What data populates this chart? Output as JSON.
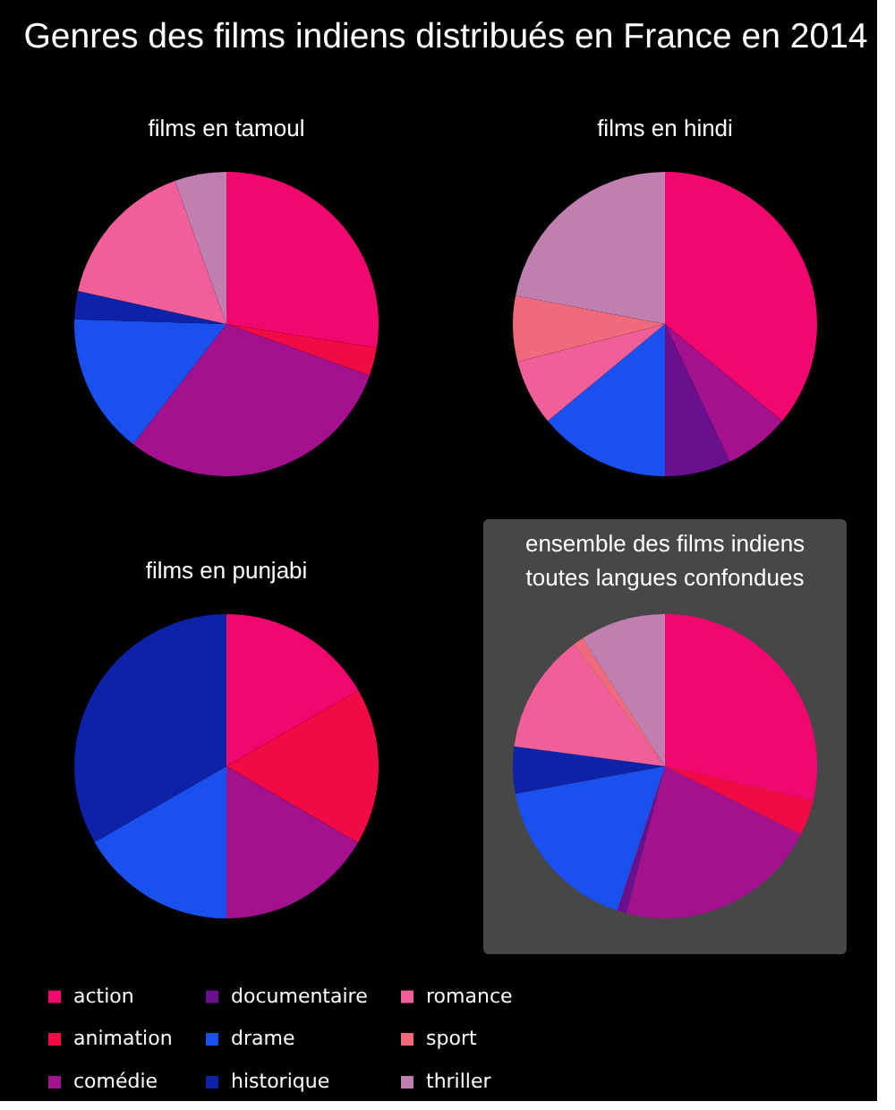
{
  "chart_data": [
    {
      "type": "other",
      "title": "Genres des films indiens distribués en France en 2014"
    },
    {
      "type": "pie",
      "title": "films en tamoul",
      "categories": [
        null,
        null,
        null,
        null,
        null,
        null,
        null
      ],
      "values": [
        27.5,
        3,
        30,
        15,
        3,
        16,
        5.5
      ],
      "colors": [
        "#f0086f",
        "#f20a45",
        "#a3118e",
        "#1a50ee",
        "#0d22a6",
        "#f05f9a",
        "#c07fb0"
      ]
    },
    {
      "type": "pie",
      "title": "films en hindi",
      "categories": [
        null,
        null,
        null,
        null,
        null,
        null,
        null
      ],
      "values": [
        36,
        7,
        7,
        14,
        7,
        7,
        22
      ],
      "colors": [
        "#f0086f",
        "#a3118e",
        "#6a0f8e",
        "#1a50ee",
        "#f05f9a",
        "#ee6a7c",
        "#c07fb0"
      ]
    },
    {
      "type": "pie",
      "title": "films en punjabi",
      "categories": [
        null,
        null,
        null,
        null,
        null
      ],
      "values": [
        16.7,
        16.7,
        16.6,
        16.7,
        33.3
      ],
      "colors": [
        "#f0086f",
        "#f20a45",
        "#a3118e",
        "#1a50ee",
        "#0d22a6"
      ]
    },
    {
      "type": "pie",
      "title": "ensemble des films indiens toutes langues confondues",
      "categories": [
        "action",
        "animation",
        "comédie",
        "documentaire",
        "drame",
        "historique",
        "romance",
        "sport",
        "thriller"
      ],
      "values": [
        28.6,
        3.8,
        21.7,
        1,
        17,
        5,
        12.7,
        1.1,
        9.1
      ],
      "colors": [
        "#f0086f",
        "#f20a45",
        "#a3118e",
        "#6a0f8e",
        "#1a50ee",
        "#0d22a6",
        "#f05f9a",
        "#ee6a7c",
        "#c07fb0"
      ],
      "legend": "bottom"
    }
  ]
}
